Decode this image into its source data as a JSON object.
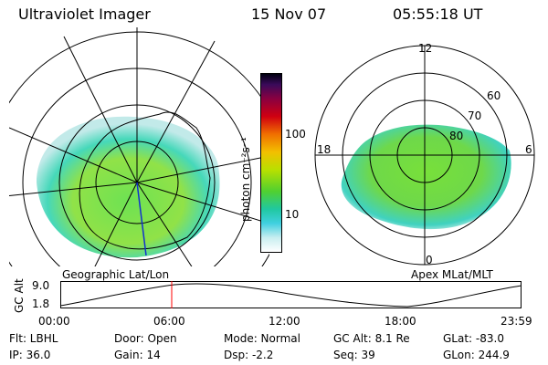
{
  "header": {
    "title": "Ultraviolet Imager",
    "date": "15 Nov 07",
    "time": "05:55:18 UT"
  },
  "left_map": {
    "caption": "Geographic Lat/Lon"
  },
  "right_map": {
    "caption": "Apex MLat/MLT",
    "mlt_labels": [
      "12",
      "18",
      "6",
      "0"
    ],
    "lat_labels": [
      "60",
      "70",
      "80"
    ]
  },
  "colorbar": {
    "unit_label": "photon cm⁻²s⁻¹",
    "ticks": [
      "100",
      "10"
    ],
    "scale": "log"
  },
  "altitude_plot": {
    "ylabel": "GC Alt",
    "yticks": [
      "9.0",
      "1.8"
    ],
    "xticks": [
      "00:00",
      "06:00",
      "12:00",
      "18:00",
      "23:59"
    ],
    "current_time_marker": "05:55",
    "marker_color": "#ff0000"
  },
  "info": {
    "flt": "Flt: LBHL",
    "door": "Door: Open",
    "mode": "Mode: Normal",
    "gc_alt": "GC Alt: 8.1 Re",
    "glat": "GLat: -83.0",
    "ip": "IP: 36.0",
    "gain": "Gain: 14",
    "dsp": "Dsp:   -2.2",
    "seq": "Seq: 39",
    "glon": "GLon: 244.9"
  }
}
